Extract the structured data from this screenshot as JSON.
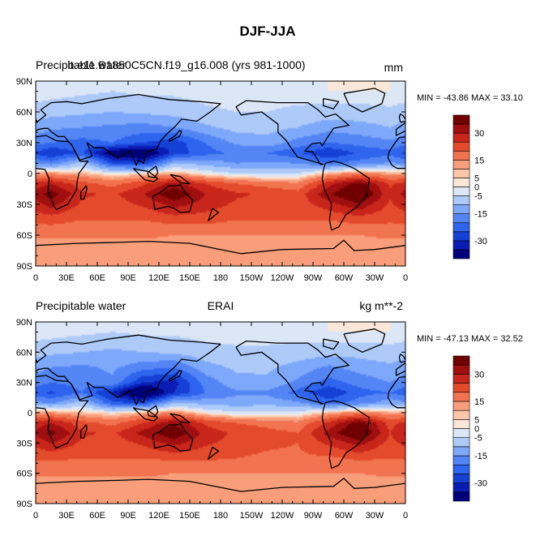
{
  "figure": {
    "title": "DJF-JJA"
  },
  "panels": [
    {
      "left_title": "Precipitable water",
      "center_title": "b.e11.B1850C5CN.f19_g16.008 (yrs 981-1000)",
      "right_title": "mm",
      "stats": "MIN = -43.86 MAX =  33.10"
    },
    {
      "left_title": "Precipitable water",
      "center_title": "ERAI",
      "right_title": "kg m**-2",
      "stats": "MIN = -47.13 MAX =  32.52"
    }
  ],
  "colorbar": {
    "colors": [
      "#00007a",
      "#0a1cb3",
      "#1540d6",
      "#2e64ee",
      "#5485f5",
      "#7ea8f9",
      "#aecaf9",
      "#dbe6f7",
      "#fbe7d8",
      "#fcc6a8",
      "#f99e7b",
      "#f27350",
      "#e44a2c",
      "#c8261a",
      "#a00f0f",
      "#700000"
    ],
    "tick_labels": [
      "-30",
      "-15",
      "-5",
      "0",
      "5",
      "15",
      "30"
    ]
  },
  "chart_data": [
    {
      "type": "heatmap",
      "title": "b.e11.B1850C5CN.f19_g16.008 (yrs 981-1000)",
      "variable": "Precipitable water",
      "units": "mm",
      "x_tick_labels": [
        "0",
        "30E",
        "60E",
        "90E",
        "120E",
        "150E",
        "180",
        "150W",
        "120W",
        "90W",
        "60W",
        "30W",
        "0"
      ],
      "y_tick_labels": [
        "90N",
        "60N",
        "30N",
        "0",
        "30S",
        "60S",
        "90S"
      ],
      "xlim": [
        0,
        360
      ],
      "ylim": [
        -90,
        90
      ],
      "min": -43.86,
      "max": 33.1,
      "contour_levels": [
        -35,
        -30,
        -25,
        -20,
        -15,
        -10,
        -5,
        -2,
        0,
        2,
        5,
        10,
        15,
        20,
        25,
        30,
        35
      ],
      "lat": [
        80,
        60,
        45,
        30,
        20,
        10,
        0,
        -10,
        -20,
        -30,
        -45,
        -60,
        -75
      ],
      "lon": [
        15,
        45,
        75,
        105,
        135,
        165,
        195,
        225,
        255,
        285,
        315,
        345
      ],
      "values": [
        [
          -3,
          -4,
          -5,
          -4,
          -4,
          -3,
          -3,
          -3,
          -3,
          -2,
          -2,
          -2
        ],
        [
          -8,
          -9,
          -10,
          -9,
          -8,
          -6,
          -5,
          -5,
          -6,
          -7,
          -7,
          -6
        ],
        [
          -14,
          -15,
          -16,
          -17,
          -15,
          -11,
          -8,
          -8,
          -10,
          -13,
          -12,
          -10
        ],
        [
          -20,
          -22,
          -20,
          -25,
          -28,
          -20,
          -14,
          -12,
          -17,
          -20,
          -18,
          -16
        ],
        [
          -30,
          -24,
          -40,
          -43,
          -28,
          -22,
          -19,
          -20,
          -24,
          -30,
          -24,
          -22
        ],
        [
          -18,
          -8,
          -25,
          -28,
          -10,
          -12,
          -15,
          -14,
          -15,
          -20,
          -18,
          -14
        ],
        [
          4,
          2,
          -2,
          0,
          3,
          -2,
          -5,
          -6,
          -5,
          2,
          6,
          3
        ],
        [
          20,
          12,
          8,
          14,
          22,
          15,
          10,
          8,
          6,
          18,
          28,
          14
        ],
        [
          28,
          16,
          14,
          20,
          30,
          20,
          16,
          14,
          12,
          24,
          33,
          16
        ],
        [
          22,
          14,
          12,
          16,
          22,
          18,
          14,
          12,
          12,
          18,
          24,
          14
        ],
        [
          12,
          10,
          10,
          10,
          12,
          12,
          10,
          10,
          10,
          10,
          12,
          11
        ],
        [
          6,
          6,
          6,
          6,
          5,
          5,
          5,
          5,
          5,
          5,
          5,
          6
        ],
        [
          2,
          2,
          2,
          2,
          2,
          2,
          2,
          2,
          2,
          2,
          2,
          2
        ]
      ]
    },
    {
      "type": "heatmap",
      "title": "ERAI",
      "variable": "Precipitable water",
      "units": "kg m**-2",
      "x_tick_labels": [
        "0",
        "30E",
        "60E",
        "90E",
        "120E",
        "150E",
        "180",
        "150W",
        "120W",
        "90W",
        "60W",
        "30W",
        "0"
      ],
      "y_tick_labels": [
        "90N",
        "60N",
        "30N",
        "0",
        "30S",
        "60S",
        "90S"
      ],
      "xlim": [
        0,
        360
      ],
      "ylim": [
        -90,
        90
      ],
      "min": -47.13,
      "max": 32.52,
      "contour_levels": [
        -35,
        -30,
        -25,
        -20,
        -15,
        -10,
        -5,
        -2,
        0,
        2,
        5,
        10,
        15,
        20,
        25,
        30,
        35
      ],
      "lat": [
        80,
        60,
        45,
        30,
        20,
        10,
        0,
        -10,
        -20,
        -30,
        -45,
        -60,
        -75
      ],
      "lon": [
        15,
        45,
        75,
        105,
        135,
        165,
        195,
        225,
        255,
        285,
        315,
        345
      ],
      "values": [
        [
          -3,
          -4,
          -5,
          -4,
          -4,
          -3,
          -3,
          -3,
          -3,
          -2,
          -2,
          -2
        ],
        [
          -9,
          -10,
          -11,
          -10,
          -9,
          -7,
          -6,
          -6,
          -7,
          -8,
          -8,
          -7
        ],
        [
          -15,
          -16,
          -14,
          -18,
          -20,
          -12,
          -9,
          -9,
          -12,
          -16,
          -13,
          -11
        ],
        [
          -20,
          -18,
          -16,
          -30,
          -32,
          -18,
          -12,
          -11,
          -16,
          -22,
          -18,
          -15
        ],
        [
          -26,
          -20,
          -32,
          -47,
          -30,
          -20,
          -16,
          -16,
          -22,
          -30,
          -22,
          -20
        ],
        [
          -16,
          -8,
          -24,
          -26,
          -10,
          -12,
          -13,
          -12,
          -14,
          -22,
          -18,
          -12
        ],
        [
          4,
          1,
          -1,
          2,
          5,
          -1,
          -4,
          -4,
          -3,
          2,
          6,
          3
        ],
        [
          20,
          12,
          8,
          15,
          24,
          14,
          10,
          8,
          6,
          16,
          28,
          13
        ],
        [
          27,
          16,
          14,
          22,
          30,
          18,
          14,
          12,
          10,
          22,
          32,
          15
        ],
        [
          20,
          14,
          12,
          16,
          22,
          16,
          13,
          11,
          10,
          16,
          22,
          13
        ],
        [
          11,
          10,
          10,
          10,
          11,
          11,
          10,
          9,
          9,
          9,
          11,
          10
        ],
        [
          6,
          6,
          6,
          6,
          5,
          5,
          5,
          5,
          5,
          5,
          5,
          6
        ],
        [
          2,
          2,
          2,
          2,
          2,
          2,
          2,
          2,
          2,
          2,
          2,
          2
        ]
      ]
    }
  ]
}
